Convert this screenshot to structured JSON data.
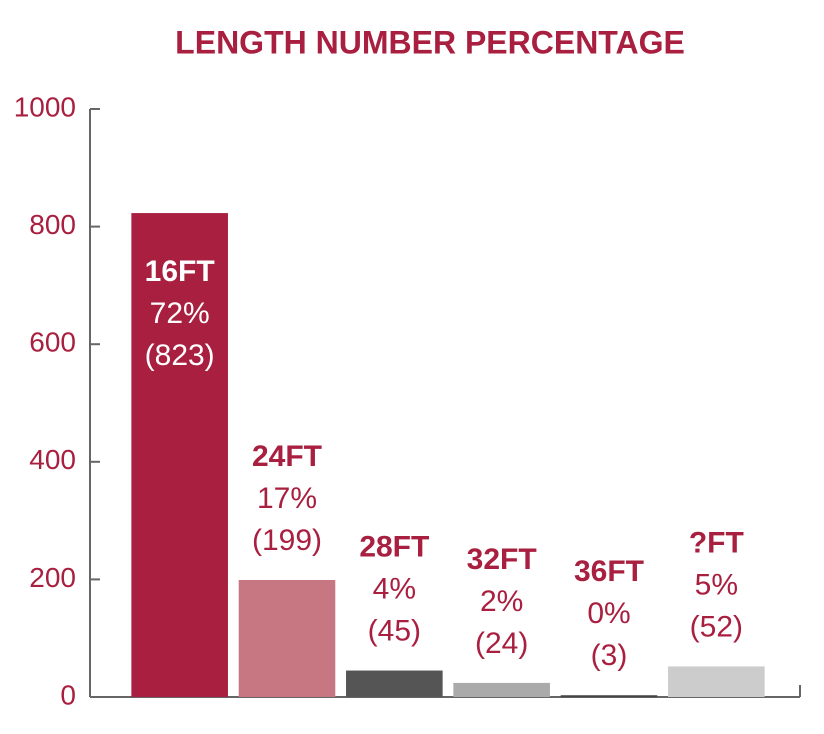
{
  "chart_data": {
    "type": "bar",
    "title": "LENGTH NUMBER PERCENTAGE",
    "categories": [
      "16FT",
      "24FT",
      "28FT",
      "32FT",
      "36FT",
      "?FT"
    ],
    "values": [
      823,
      199,
      45,
      24,
      3,
      52
    ],
    "value_labels": [
      "(823)",
      "(199)",
      "(45)",
      "(24)",
      "(3)",
      "(52)"
    ],
    "percent_labels": [
      "72%",
      "17%",
      "4%",
      "2%",
      "0%",
      "5%"
    ],
    "colors": [
      "#a91f3f",
      "#c67782",
      "#555555",
      "#aaaaaa",
      "#444444",
      "#cccccc"
    ],
    "ylim": [
      0,
      1000
    ],
    "yticks": [
      0,
      200,
      400,
      600,
      800,
      1000
    ],
    "grid": false
  }
}
